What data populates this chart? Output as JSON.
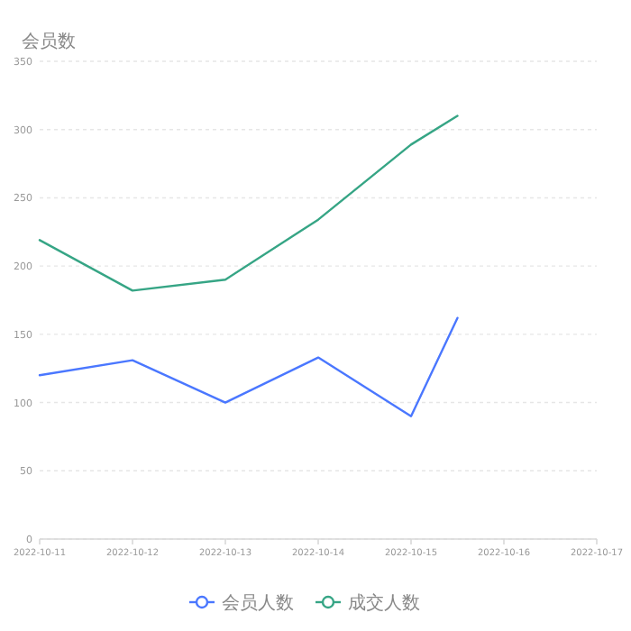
{
  "chart_data": {
    "type": "line",
    "ylabel": "会员数",
    "x": [
      "2022-10-11",
      "2022-10-12",
      "2022-10-13",
      "2022-10-14",
      "2022-10-15",
      "2022-10-15T12:00"
    ],
    "series": [
      {
        "name": "会员人数",
        "color": "#4a77ff",
        "values": [
          120,
          131,
          100,
          133,
          90,
          162
        ]
      },
      {
        "name": "成交人数",
        "color": "#36a585",
        "values": [
          219,
          182,
          190,
          234,
          289,
          310
        ]
      }
    ],
    "xlim": [
      "2022-10-11",
      "2022-10-17"
    ],
    "xticks": [
      "2022-10-11",
      "2022-10-12",
      "2022-10-13",
      "2022-10-14",
      "2022-10-15",
      "2022-10-16",
      "2022-10-17"
    ],
    "ylim": [
      0,
      350
    ],
    "yticks": [
      0,
      50,
      100,
      150,
      200,
      250,
      300,
      350
    ],
    "grid": "y",
    "legend": "bottom"
  }
}
